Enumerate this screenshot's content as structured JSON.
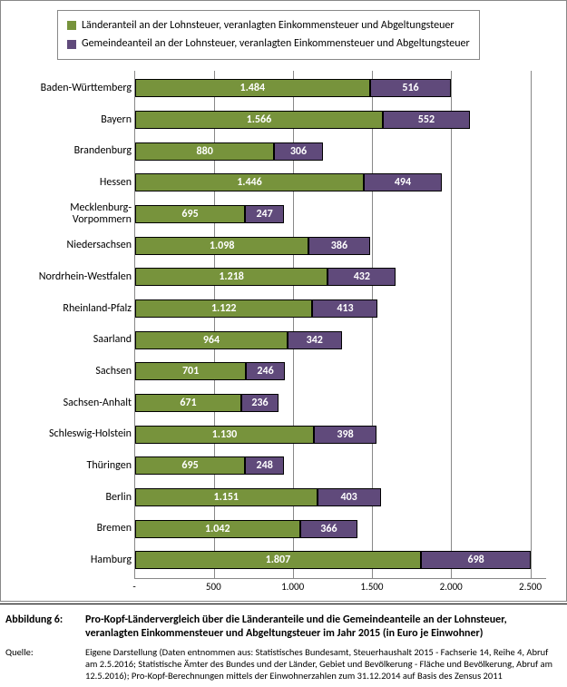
{
  "chart": {
    "type": "stacked-bar-horizontal",
    "background_color": "#ffffff",
    "grid_color": "#888888",
    "axis_color": "#888888",
    "x_max": 2600,
    "x_ticks": [
      0,
      500,
      1000,
      1500,
      2000,
      2500
    ],
    "x_tick_labels": [
      "-",
      "500",
      "1.000",
      "1.500",
      "2.000",
      "2.500"
    ],
    "category_fontsize": 12,
    "value_fontsize": 12,
    "value_color": "#ffffff",
    "legend": {
      "items": [
        {
          "label": "Länderanteil an der Lohnsteuer, veranlagten Einkommensteuer und Abgeltungsteuer",
          "color": "#77933c"
        },
        {
          "label": "Gemeindeanteil an der Lohnsteuer, veranlagten Einkommensteuer und Abgeltungsteuer",
          "color": "#604a7b"
        }
      ]
    },
    "series_colors": [
      "#77933c",
      "#604a7b"
    ],
    "bar_border_color": "#000000",
    "categories": [
      {
        "name": "Baden-Württemberg",
        "values": [
          1484,
          516
        ],
        "labels": [
          "1.484",
          "516"
        ]
      },
      {
        "name": "Bayern",
        "values": [
          1566,
          552
        ],
        "labels": [
          "1.566",
          "552"
        ]
      },
      {
        "name": "Brandenburg",
        "values": [
          880,
          306
        ],
        "labels": [
          "880",
          "306"
        ]
      },
      {
        "name": "Hessen",
        "values": [
          1446,
          494
        ],
        "labels": [
          "1.446",
          "494"
        ]
      },
      {
        "name": "Mecklenburg-Vorpommern",
        "values": [
          695,
          247
        ],
        "labels": [
          "695",
          "247"
        ]
      },
      {
        "name": "Niedersachsen",
        "values": [
          1098,
          386
        ],
        "labels": [
          "1.098",
          "386"
        ]
      },
      {
        "name": "Nordrhein-Westfalen",
        "values": [
          1218,
          432
        ],
        "labels": [
          "1.218",
          "432"
        ]
      },
      {
        "name": "Rheinland-Pfalz",
        "values": [
          1122,
          413
        ],
        "labels": [
          "1.122",
          "413"
        ]
      },
      {
        "name": "Saarland",
        "values": [
          964,
          342
        ],
        "labels": [
          "964",
          "342"
        ]
      },
      {
        "name": "Sachsen",
        "values": [
          701,
          246
        ],
        "labels": [
          "701",
          "246"
        ]
      },
      {
        "name": "Sachsen-Anhalt",
        "values": [
          671,
          236
        ],
        "labels": [
          "671",
          "236"
        ]
      },
      {
        "name": "Schleswig-Holstein",
        "values": [
          1130,
          398
        ],
        "labels": [
          "1.130",
          "398"
        ]
      },
      {
        "name": "Thüringen",
        "values": [
          695,
          248
        ],
        "labels": [
          "695",
          "248"
        ]
      },
      {
        "name": "Berlin",
        "values": [
          1151,
          403
        ],
        "labels": [
          "1.151",
          "403"
        ]
      },
      {
        "name": "Bremen",
        "values": [
          1042,
          366
        ],
        "labels": [
          "1.042",
          "366"
        ]
      },
      {
        "name": "Hamburg",
        "values": [
          1807,
          698
        ],
        "labels": [
          "1.807",
          "698"
        ]
      }
    ]
  },
  "caption": {
    "label": "Abbildung 6:",
    "text": "Pro-Kopf-Ländervergleich über die Länderanteile und die Gemeindeanteile an der Lohnsteuer, veranlagten Einkommensteuer und Abgeltungsteuer im Jahr 2015 (in Euro je Einwohner)"
  },
  "source": {
    "label": "Quelle:",
    "text": "Eigene Darstellung (Daten entnommen aus: Statistisches Bundesamt, Steuerhaushalt 2015 - Fachserie 14, Reihe 4, Abruf am 2.5.2016; Statistische Ämter des Bundes und der Länder, Gebiet und Bevölkerung - Fläche und Bevölkerung, Abruf am 12.5.2016); Pro-Kopf-Berechnungen mittels der Einwohnerzahlen zum 31.12.2014 auf Basis des Zensus 2011"
  }
}
